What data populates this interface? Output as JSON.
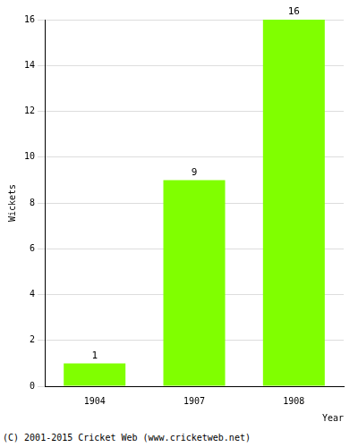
{
  "chart_data": {
    "type": "bar",
    "y_label": "Wickets",
    "x_label": "Year",
    "categories": [
      "1904",
      "1907",
      "1908"
    ],
    "values": [
      1,
      9,
      16
    ],
    "color": "#80ff00",
    "ylim": [
      0,
      16
    ],
    "yticks": [
      0,
      2,
      4,
      6,
      8,
      10,
      12,
      14,
      16
    ],
    "grid": true,
    "data_labels": true,
    "annotations": [
      "(C) 2001-2015 Cricket Web (www.cricketweb.net)"
    ]
  }
}
